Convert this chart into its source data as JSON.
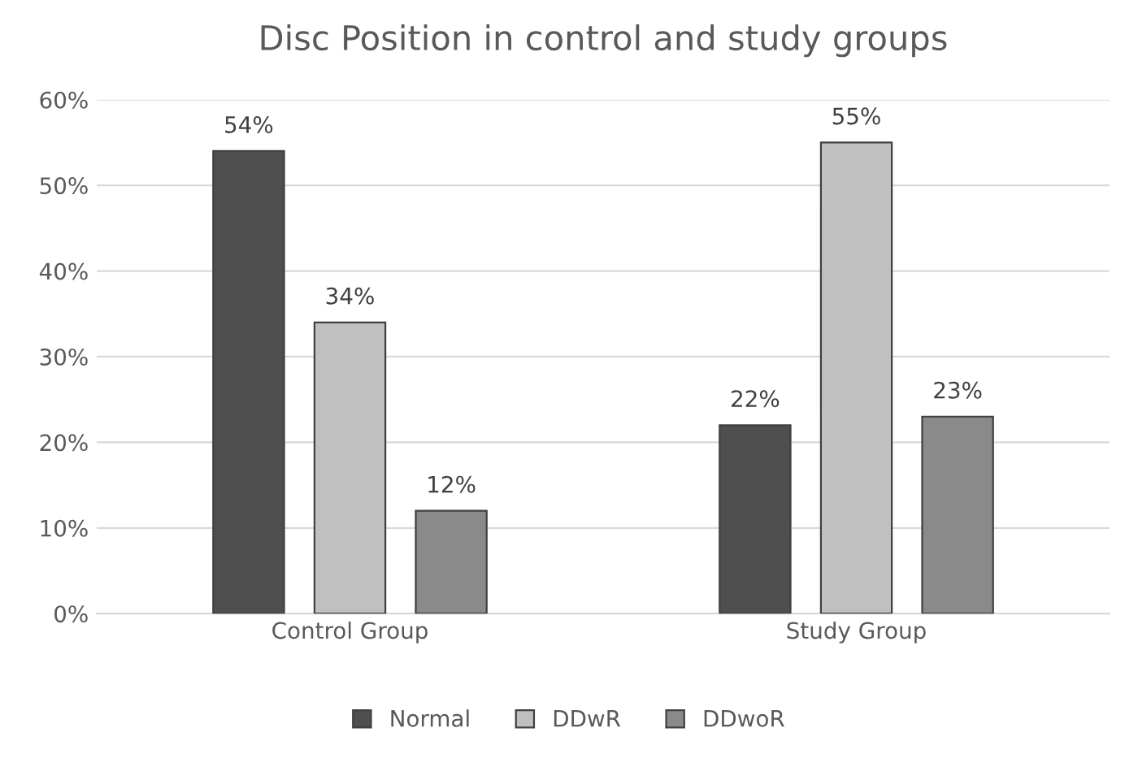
{
  "chart_data": {
    "type": "bar",
    "title": "Disc Position in control and study groups",
    "categories": [
      "Control Group",
      "Study Group"
    ],
    "series": [
      {
        "name": "Normal",
        "color": "#4f4f4f",
        "values": [
          54,
          22
        ],
        "value_labels": [
          "54%",
          "22%"
        ]
      },
      {
        "name": "DDwR",
        "color": "#c0c0c0",
        "values": [
          34,
          55
        ],
        "value_labels": [
          "34%",
          "55%"
        ]
      },
      {
        "name": "DDwoR",
        "color": "#8a8a8a",
        "values": [
          12,
          23
        ],
        "value_labels": [
          "12%",
          "23%"
        ]
      }
    ],
    "ylim": [
      0,
      60
    ],
    "yticks": [
      {
        "value": 0,
        "label": "0%"
      },
      {
        "value": 10,
        "label": "10%"
      },
      {
        "value": 20,
        "label": "20%"
      },
      {
        "value": 30,
        "label": "30%"
      },
      {
        "value": 40,
        "label": "40%"
      },
      {
        "value": 50,
        "label": "50%"
      },
      {
        "value": 60,
        "label": "60%"
      }
    ],
    "grid": "y",
    "legend": "bottom"
  }
}
